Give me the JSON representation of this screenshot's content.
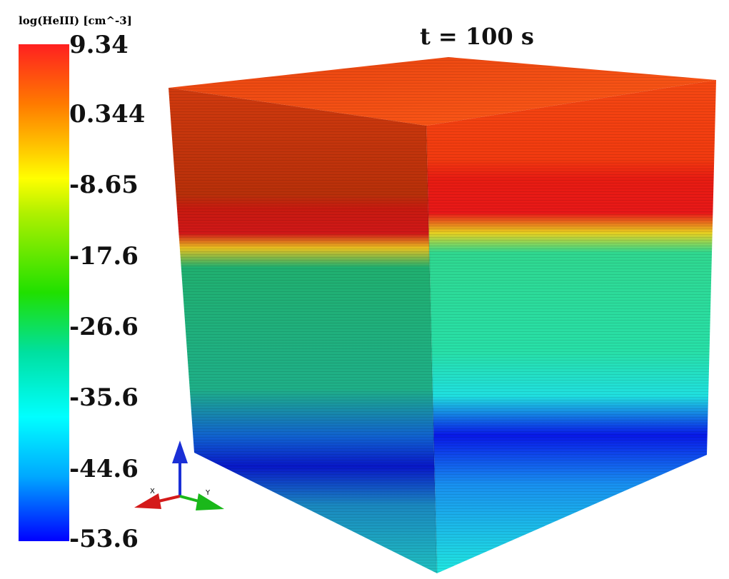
{
  "colorbar": {
    "title": "log(HeIII) [cm^-3]",
    "ticks": [
      "9.34",
      "0.344",
      "-8.65",
      "-17.6",
      "-26.6",
      "-35.6",
      "-44.6",
      "-53.6"
    ]
  },
  "time_label": "t = 100 s",
  "axes_triad": {
    "x_label": "X",
    "y_label": "Y",
    "z_color": "#1a2fd6",
    "x_color": "#d41a1a",
    "y_color": "#1ab81a"
  },
  "colors": {
    "top_face": "#f04010",
    "red_band": "#e81818",
    "yellow_band": "#e8d020",
    "green_mid": "#22c07a",
    "cyan_band": "#20e0e0",
    "blue_band": "#0a10e0"
  }
}
